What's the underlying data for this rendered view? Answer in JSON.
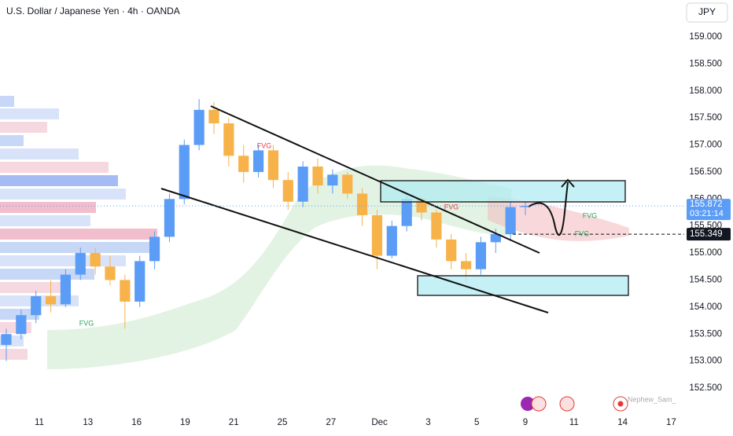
{
  "chart_data": {
    "type": "candlestick",
    "title": "U.S. Dollar / Japanese Yen · 4h · OANDA",
    "currency": "JPY",
    "x_labels": [
      "11",
      "13",
      "16",
      "19",
      "21",
      "25",
      "27",
      "Dec",
      "3",
      "5",
      "9",
      "11",
      "14",
      "17"
    ],
    "open": [
      153.3,
      153.5,
      153.85,
      154.2,
      154.05,
      154.6,
      155.0,
      154.75,
      154.5,
      154.1,
      154.85,
      155.3,
      156.0,
      157.0,
      157.65,
      157.4,
      156.8,
      156.5,
      156.9,
      156.35,
      155.95,
      156.6,
      156.25,
      156.45,
      156.1,
      155.7,
      154.95,
      155.5,
      156.0,
      155.75,
      155.25,
      154.85,
      154.7,
      155.2,
      155.35,
      155.85
    ],
    "high": [
      153.6,
      153.95,
      154.3,
      154.5,
      154.7,
      155.1,
      155.1,
      154.95,
      154.6,
      154.95,
      155.4,
      156.1,
      157.1,
      157.85,
      157.8,
      157.5,
      157.0,
      157.0,
      157.0,
      156.5,
      156.7,
      156.75,
      156.55,
      156.5,
      156.2,
      155.8,
      155.6,
      156.1,
      156.05,
      155.8,
      155.35,
      155.0,
      155.3,
      155.45,
      155.95,
      155.95
    ],
    "low": [
      153.0,
      153.4,
      153.7,
      153.9,
      154.0,
      154.5,
      154.6,
      154.4,
      153.6,
      154.0,
      154.7,
      155.2,
      155.9,
      156.9,
      157.2,
      156.6,
      156.3,
      156.4,
      156.2,
      155.8,
      155.85,
      156.1,
      156.1,
      156.0,
      155.5,
      154.7,
      154.9,
      155.4,
      155.6,
      155.1,
      154.7,
      154.45,
      154.6,
      155.0,
      155.25,
      155.7
    ],
    "close": [
      153.5,
      153.85,
      154.2,
      154.05,
      154.6,
      155.0,
      154.75,
      154.5,
      154.1,
      154.85,
      155.3,
      156.0,
      157.0,
      157.65,
      157.4,
      156.8,
      156.5,
      156.9,
      156.35,
      155.95,
      156.6,
      156.25,
      156.45,
      156.1,
      155.7,
      154.95,
      155.5,
      156.0,
      155.75,
      155.25,
      154.85,
      154.7,
      155.2,
      155.35,
      155.85,
      155.872
    ],
    "up_color": "#5b9cf6",
    "down_color": "#f7b24a",
    "ylim": [
      152.122,
      159.683
    ],
    "yticks": [
      {
        "value": 159,
        "label": "159.000"
      },
      {
        "value": 158.5,
        "label": "158.500"
      },
      {
        "value": 158,
        "label": "158.000"
      },
      {
        "value": 157.5,
        "label": "157.500"
      },
      {
        "value": 157,
        "label": "157.000"
      },
      {
        "value": 156.5,
        "label": "156.500"
      },
      {
        "value": 156,
        "label": "156.000"
      },
      {
        "value": 155.5,
        "label": "155.500"
      },
      {
        "value": 155,
        "label": "155.000"
      },
      {
        "value": 154.5,
        "label": "154.500"
      },
      {
        "value": 154,
        "label": "154.000"
      },
      {
        "value": 153.5,
        "label": "153.500"
      },
      {
        "value": 153,
        "label": "153.000"
      },
      {
        "value": 152.5,
        "label": "152.500"
      }
    ],
    "last_price": 155.872,
    "countdown": "03:21:14",
    "marked_price": 155.349,
    "annotations": [
      "FVG",
      "FVG",
      "FVG",
      "FVG",
      "FVG"
    ],
    "author": "Nephew_Sam_"
  }
}
